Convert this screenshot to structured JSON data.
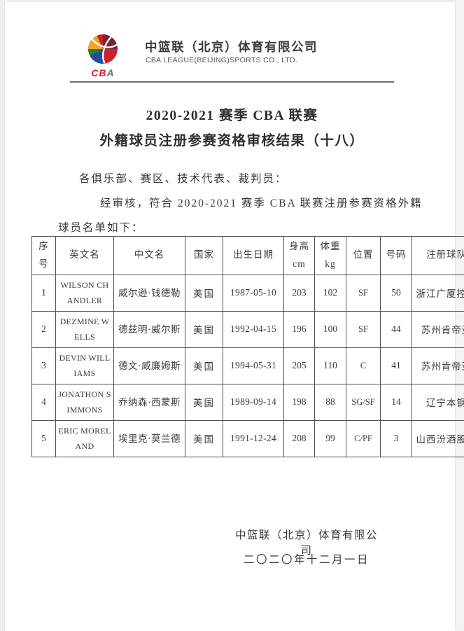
{
  "header": {
    "logo_wordmark": "CBA",
    "company_cn": "中篮联（北京）体育有限公司",
    "company_en": "CBA LEAGUE(BEIJING)SPORTS CO., LTD."
  },
  "title": {
    "line1": "2020-2021 赛季 CBA 联赛",
    "line2": "外籍球员注册参赛资格审核结果（十八）"
  },
  "body": {
    "salutation": "各俱乐部、赛区、技术代表、裁判员：",
    "intro_line1": "经审核，符合 2020-2021 赛季 CBA 联赛注册参赛资格外籍",
    "intro_line2": "球员名单如下："
  },
  "table": {
    "headers": [
      "序\n号",
      "英文名",
      "中文名",
      "国家",
      "出生日期",
      "身高\ncm",
      "体重\nkg",
      "位置",
      "号码",
      "注册球队"
    ],
    "rows": [
      [
        "1",
        "WILSON CHANDLER",
        "威尔逊·钱德勒",
        "美国",
        "1987-05-10",
        "203",
        "102",
        "SF",
        "50",
        "浙江广厦控股"
      ],
      [
        "2",
        "DEZMINE WELLS",
        "德兹明·威尔斯",
        "美国",
        "1992-04-15",
        "196",
        "100",
        "SF",
        "44",
        "苏州肯帝亚"
      ],
      [
        "3",
        "DEVIN WILLIAMS",
        "德文·威廉姆斯",
        "美国",
        "1994-05-31",
        "205",
        "110",
        "C",
        "41",
        "苏州肯帝亚"
      ],
      [
        "4",
        "JONATHON SIMMONS",
        "乔纳森·西蒙斯",
        "美国",
        "1989-09-14",
        "198",
        "88",
        "SG/SF",
        "14",
        "辽宁本钢"
      ],
      [
        "5",
        "ERIC MORELAND",
        "埃里克·莫兰德",
        "美国",
        "1991-12-24",
        "208",
        "99",
        "C/PF",
        "3",
        "山西汾酒股份"
      ]
    ]
  },
  "footer": {
    "company": "中篮联（北京）体育有限公司",
    "date": "二〇二〇年十二月一日"
  },
  "colors": {
    "logo_red": "#ce202f",
    "logo_dark_red": "#7a2332",
    "logo_yellow": "#f3a51f",
    "logo_green": "#2c7e3e",
    "logo_blue": "#1e4f9c",
    "wordmark_gray": "#6d6e71",
    "rule_gray": "#6f7072"
  }
}
